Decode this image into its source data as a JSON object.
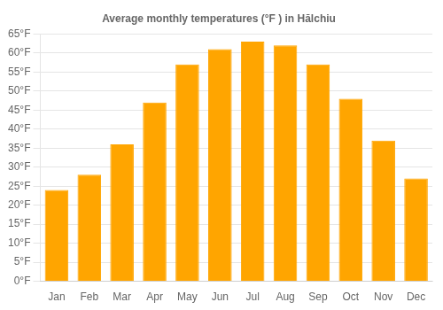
{
  "chart_data": {
    "type": "bar",
    "title": "Average monthly temperatures (°F ) in Hălchiu",
    "categories": [
      "Jan",
      "Feb",
      "Mar",
      "Apr",
      "May",
      "Jun",
      "Jul",
      "Aug",
      "Sep",
      "Oct",
      "Nov",
      "Dec"
    ],
    "values": [
      24,
      28,
      36,
      47,
      57,
      61,
      63,
      62,
      57,
      48,
      37,
      27
    ],
    "color": "#FFA500",
    "ylim": [
      0,
      65
    ],
    "yticks": [
      {
        "value": 0,
        "label": "0°F"
      },
      {
        "value": 5,
        "label": "5°F"
      },
      {
        "value": 10,
        "label": "10°F"
      },
      {
        "value": 15,
        "label": "15°F"
      },
      {
        "value": 20,
        "label": "20°F"
      },
      {
        "value": 25,
        "label": "25°F"
      },
      {
        "value": 30,
        "label": "30°F"
      },
      {
        "value": 35,
        "label": "35°F"
      },
      {
        "value": 40,
        "label": "40°F"
      },
      {
        "value": 45,
        "label": "45°F"
      },
      {
        "value": 50,
        "label": "50°F"
      },
      {
        "value": 55,
        "label": "55°F"
      },
      {
        "value": 60,
        "label": "60°F"
      },
      {
        "value": 65,
        "label": "65°F"
      }
    ],
    "grid": true
  }
}
